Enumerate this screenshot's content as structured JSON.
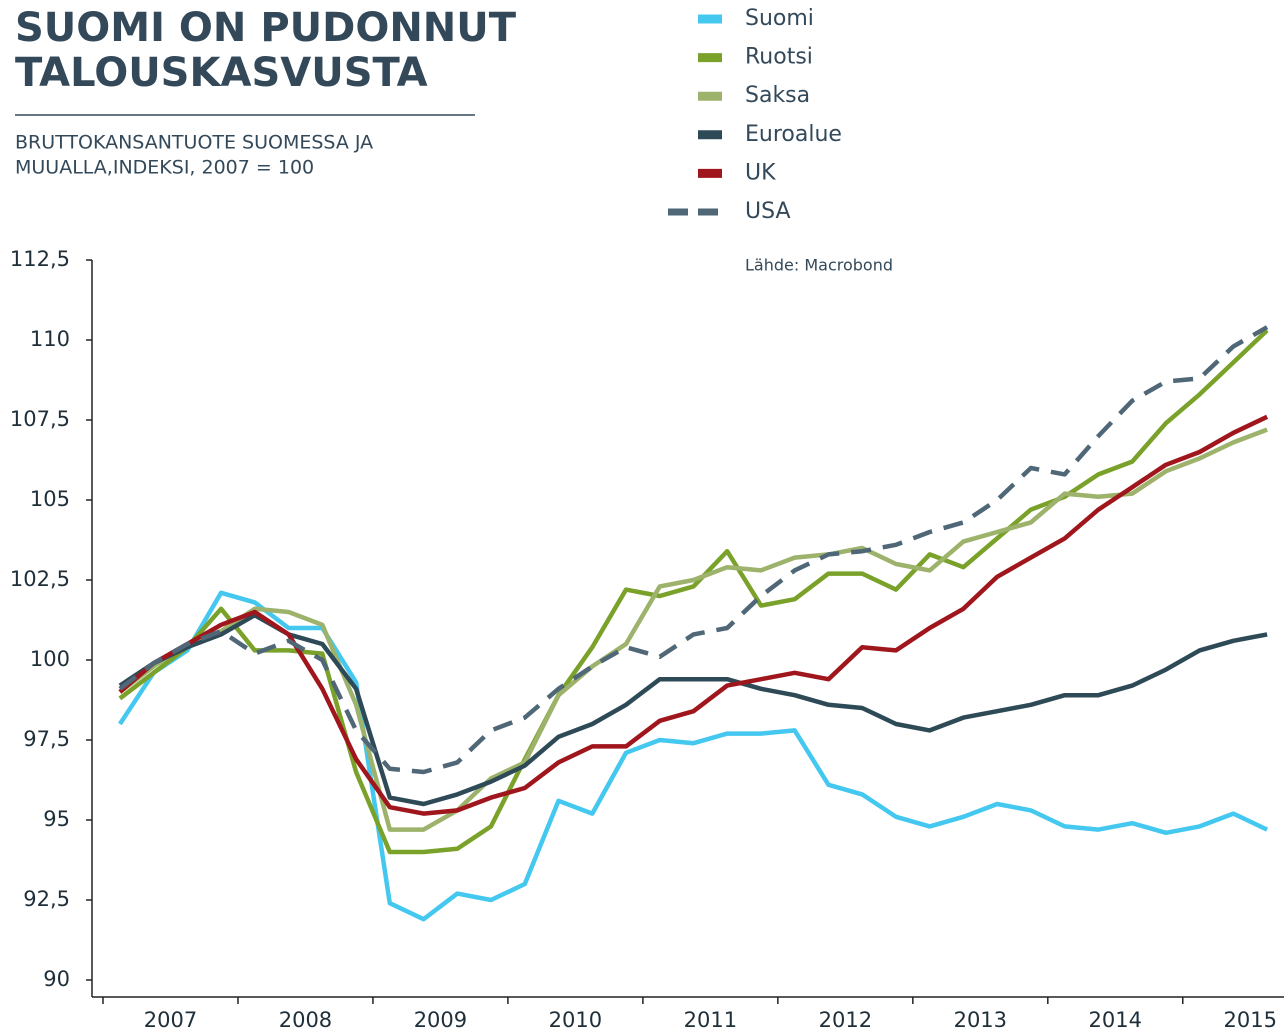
{
  "chart_data": {
    "type": "line",
    "title": [
      "SUOMI ON PUDONNUT",
      "TALOUSKASVUSTA"
    ],
    "subtitle": [
      "BRUTTOKANSANTUOTE SUOMESSA JA",
      "MUUALLA,INDEKSI, 2007 = 100"
    ],
    "annotation": "Lähde: Macrobond",
    "x": [
      2007.125,
      2007.375,
      2007.625,
      2007.875,
      2008.125,
      2008.375,
      2008.625,
      2008.875,
      2009.125,
      2009.375,
      2009.625,
      2009.875,
      2010.125,
      2010.375,
      2010.625,
      2010.875,
      2011.125,
      2011.375,
      2011.625,
      2011.875,
      2012.125,
      2012.375,
      2012.625,
      2012.875,
      2013.125,
      2013.375,
      2013.625,
      2013.875,
      2014.125,
      2014.375,
      2014.625,
      2014.875,
      2015.125,
      2015.375,
      2015.625
    ],
    "series": [
      {
        "name": "Suomi",
        "color": "#45c8f0",
        "values": [
          98.0,
          99.6,
          100.3,
          102.1,
          101.8,
          101.0,
          101.0,
          99.3,
          92.4,
          91.9,
          92.7,
          92.5,
          93.0,
          95.6,
          95.2,
          97.1,
          97.5,
          97.4,
          97.7,
          97.7,
          97.8,
          96.1,
          95.8,
          95.1,
          94.8,
          95.1,
          95.5,
          95.3,
          94.8,
          94.7,
          94.9,
          94.6,
          94.8,
          95.2,
          94.7
        ]
      },
      {
        "name": "Ruotsi",
        "color": "#7aa22a",
        "values": [
          98.8,
          99.6,
          100.4,
          101.6,
          100.3,
          100.3,
          100.2,
          96.5,
          94.0,
          94.0,
          94.1,
          94.8,
          96.9,
          98.9,
          100.4,
          102.2,
          102.0,
          102.3,
          103.4,
          101.7,
          101.9,
          102.7,
          102.7,
          102.2,
          103.3,
          102.9,
          103.8,
          104.7,
          105.1,
          105.8,
          106.2,
          107.4,
          108.3,
          109.3,
          110.3
        ]
      },
      {
        "name": "Saksa",
        "color": "#9db26a",
        "values": [
          99.0,
          99.8,
          100.5,
          100.9,
          101.6,
          101.5,
          101.1,
          98.6,
          94.7,
          94.7,
          95.3,
          96.3,
          96.8,
          98.9,
          99.8,
          100.5,
          102.3,
          102.5,
          102.9,
          102.8,
          103.2,
          103.3,
          103.5,
          103.0,
          102.8,
          103.7,
          104.0,
          104.3,
          105.2,
          105.1,
          105.2,
          105.9,
          106.3,
          106.8,
          107.2
        ]
      },
      {
        "name": "Euroalue",
        "color": "#2e4a57",
        "values": [
          99.2,
          99.9,
          100.4,
          100.8,
          101.4,
          100.8,
          100.5,
          99.1,
          95.7,
          95.5,
          95.8,
          96.2,
          96.7,
          97.6,
          98.0,
          98.6,
          99.4,
          99.4,
          99.4,
          99.1,
          98.9,
          98.6,
          98.5,
          98.0,
          97.8,
          98.2,
          98.4,
          98.6,
          98.9,
          98.9,
          99.2,
          99.7,
          100.3,
          100.6,
          100.8
        ]
      },
      {
        "name": "UK",
        "color": "#a0161d",
        "values": [
          99.0,
          99.9,
          100.5,
          101.1,
          101.5,
          100.8,
          99.1,
          96.9,
          95.4,
          95.2,
          95.3,
          95.7,
          96.0,
          96.8,
          97.3,
          97.3,
          98.1,
          98.4,
          99.2,
          99.4,
          99.6,
          99.4,
          100.4,
          100.3,
          101.0,
          101.6,
          102.6,
          103.2,
          103.8,
          104.7,
          105.4,
          106.1,
          106.5,
          107.1,
          107.6
        ]
      },
      {
        "name": "USA",
        "color": "#4f6777",
        "dashed": true,
        "values": [
          99.1,
          99.9,
          100.5,
          100.9,
          100.2,
          100.6,
          100.0,
          97.8,
          96.6,
          96.5,
          96.8,
          97.8,
          98.2,
          99.1,
          99.8,
          100.4,
          100.1,
          100.8,
          101.0,
          102.0,
          102.8,
          103.3,
          103.4,
          103.6,
          104.0,
          104.3,
          105.0,
          106.0,
          105.8,
          107.0,
          108.1,
          108.7,
          108.8,
          109.8,
          110.4
        ]
      }
    ],
    "xlim": [
      2007,
      2015.75
    ],
    "xticks": [
      2007,
      2008,
      2009,
      2010,
      2011,
      2012,
      2013,
      2014,
      2015
    ],
    "ylim": [
      90,
      112.5
    ],
    "yticks": [
      90,
      {
        "value": 92.5,
        "label": "92,5"
      },
      95,
      {
        "value": 97.5,
        "label": "97,5"
      },
      100,
      {
        "value": 102.5,
        "label": "102,5"
      },
      105,
      {
        "value": 107.5,
        "label": "107,5"
      },
      110,
      {
        "value": 112.5,
        "label": "112,5"
      }
    ],
    "grid": false
  }
}
